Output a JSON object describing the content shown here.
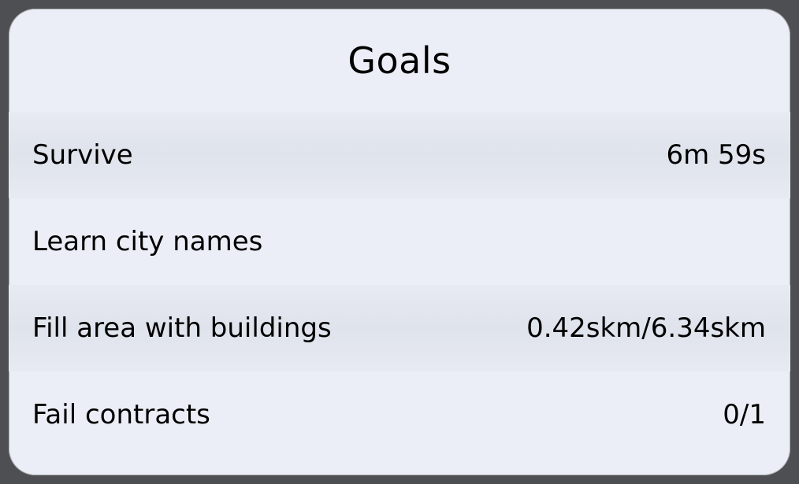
{
  "panel": {
    "title": "Goals",
    "goals": [
      {
        "label": "Survive",
        "value": "6m 59s"
      },
      {
        "label": "Learn city names",
        "value": ""
      },
      {
        "label": "Fill area with buildings",
        "value": "0.42skm/6.34skm"
      },
      {
        "label": "Fail contracts",
        "value": "0/1"
      }
    ]
  },
  "colors": {
    "panel_background": "#ebeef6",
    "shaded_row": "#dfe3ec",
    "outer_background": "#4d4f52",
    "text": "#000000"
  }
}
